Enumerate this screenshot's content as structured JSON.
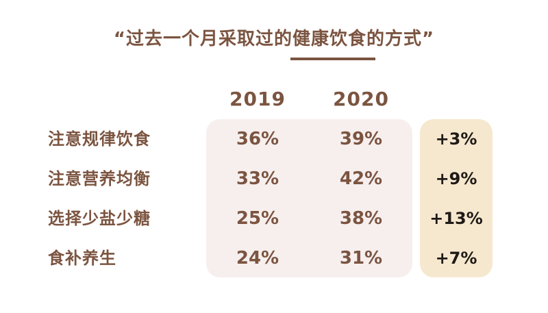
{
  "title": "“过去一个月采取过的健康饮食的方式”",
  "columns": [
    "2019",
    "2020"
  ],
  "rows": [
    {
      "label": "注意规律饮食",
      "v2019": "36%",
      "v2020": "39%",
      "change": "+3%"
    },
    {
      "label": "注意营养均衡",
      "v2019": "33%",
      "v2020": "42%",
      "change": "+9%"
    },
    {
      "label": "选择少盐少糖",
      "v2019": "25%",
      "v2020": "38%",
      "change": "+13%"
    },
    {
      "label": "食补养生",
      "v2019": "24%",
      "v2020": "31%",
      "change": "+7%"
    }
  ],
  "colors": {
    "text_brown": "#7b5440",
    "panel_values": "#f6efee",
    "panel_change": "#f6e8cf",
    "change_text": "#1f1a17"
  },
  "chart_data": {
    "type": "table",
    "title": "“过去一个月采取过的健康饮食的方式”",
    "columns": [
      "2019",
      "2020"
    ],
    "categories": [
      "注意规律饮食",
      "注意营养均衡",
      "选择少盐少糖",
      "食补养生"
    ],
    "series": [
      {
        "name": "2019",
        "values": [
          36,
          33,
          25,
          24
        ]
      },
      {
        "name": "2020",
        "values": [
          39,
          42,
          38,
          31
        ]
      }
    ],
    "change": [
      3,
      9,
      13,
      7
    ],
    "unit": "%"
  }
}
